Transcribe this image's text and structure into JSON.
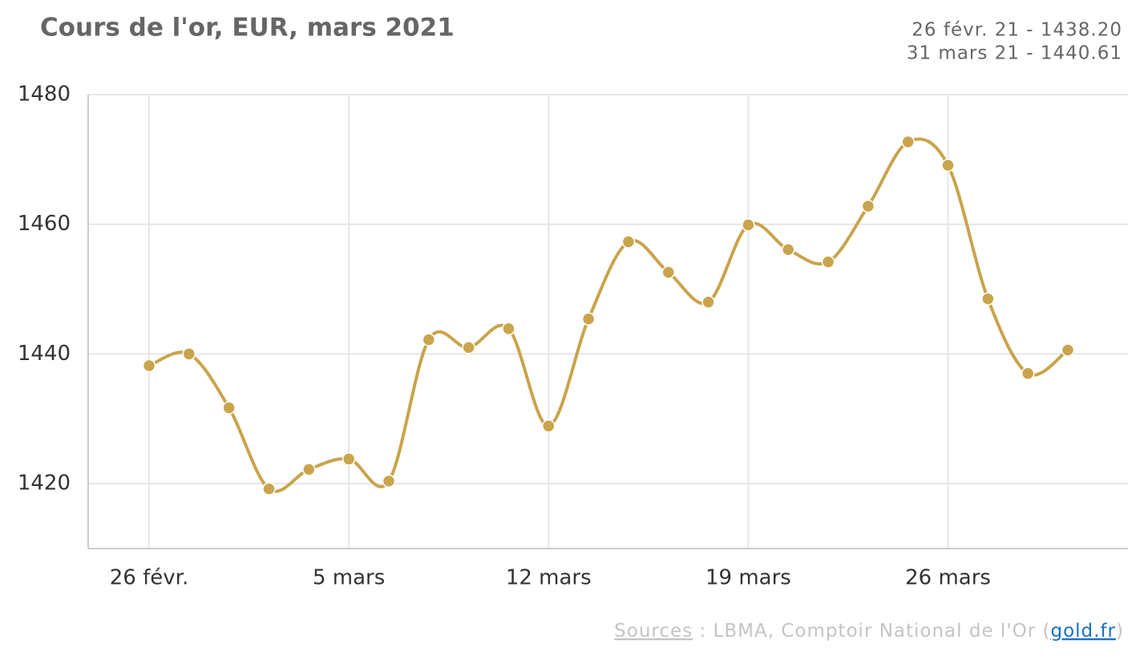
{
  "chart_data": {
    "type": "line",
    "title": "Cours de l'or, EUR, mars 2021",
    "summary": [
      "26 févr. 21 - 1438.20",
      "31 mars 21 - 1440.61"
    ],
    "source": {
      "link_text": "Sources",
      "text": " : LBMA, Comptoir National de l'Or (",
      "site": "gold.fr",
      "end": ")"
    },
    "categories": [
      "26 févr.",
      null,
      null,
      null,
      null,
      "5 mars",
      null,
      null,
      null,
      null,
      "12 mars",
      null,
      null,
      null,
      null,
      "19 mars",
      null,
      null,
      null,
      null,
      "26 mars",
      null,
      null,
      null
    ],
    "series": [
      {
        "name": "EUR",
        "color": "#c9a44c",
        "values": [
          1438.2,
          1440.0,
          1431.7,
          1419.2,
          1422.2,
          1423.8,
          1420.4,
          1442.2,
          1441.0,
          1443.9,
          1428.9,
          1445.4,
          1457.3,
          1452.6,
          1448.0,
          1459.9,
          1456.1,
          1454.2,
          1462.8,
          1472.7,
          1469.1,
          1448.5,
          1437.0,
          1440.61
        ]
      }
    ],
    "ylim": [
      1410,
      1480
    ],
    "yticks": [
      1420,
      1440,
      1460,
      1480
    ],
    "grid": true
  }
}
